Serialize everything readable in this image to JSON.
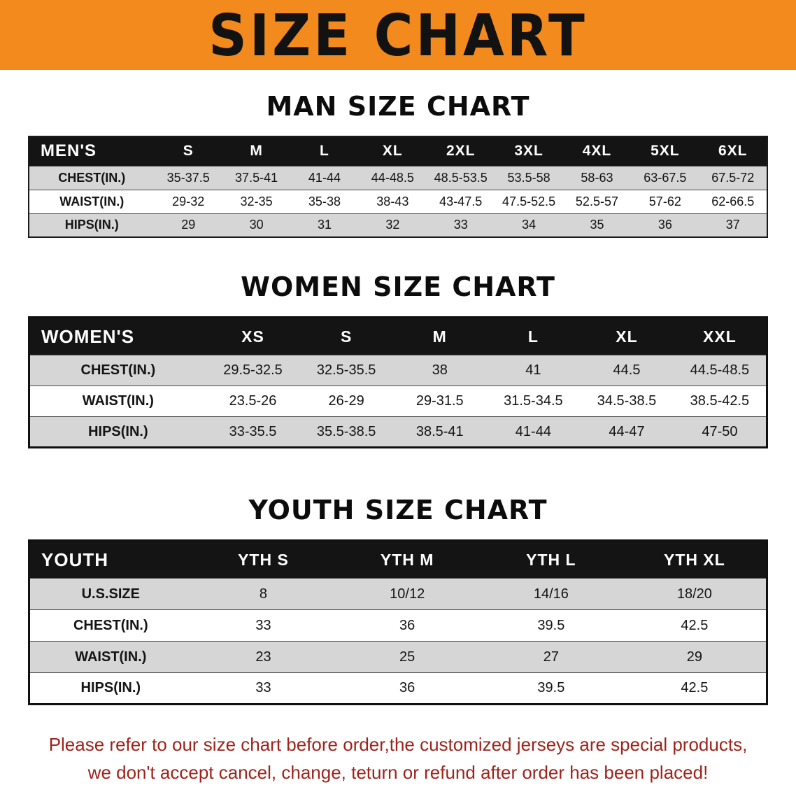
{
  "banner": {
    "title": "SIZE CHART"
  },
  "colors": {
    "banner_orange": "#f28a1e",
    "header_black": "#141414",
    "stripe_gray": "#d6d6d6",
    "disclaimer_red": "#9d231b"
  },
  "sections": [
    {
      "heading": "MAN SIZE CHART",
      "table": {
        "header": [
          "MEN'S",
          "S",
          "M",
          "L",
          "XL",
          "2XL",
          "3XL",
          "4XL",
          "5XL",
          "6XL"
        ],
        "rows": [
          [
            "CHEST(IN.)",
            "35-37.5",
            "37.5-41",
            "41-44",
            "44-48.5",
            "48.5-53.5",
            "53.5-58",
            "58-63",
            "63-67.5",
            "67.5-72"
          ],
          [
            "WAIST(IN.)",
            "29-32",
            "32-35",
            "35-38",
            "38-43",
            "43-47.5",
            "47.5-52.5",
            "52.5-57",
            "57-62",
            "62-66.5"
          ],
          [
            "HIPS(IN.)",
            "29",
            "30",
            "31",
            "32",
            "33",
            "34",
            "35",
            "36",
            "37"
          ]
        ]
      }
    },
    {
      "heading": "WOMEN SIZE CHART",
      "table": {
        "header": [
          "WOMEN'S",
          "XS",
          "S",
          "M",
          "L",
          "XL",
          "XXL"
        ],
        "rows": [
          [
            "CHEST(IN.)",
            "29.5-32.5",
            "32.5-35.5",
            "38",
            "41",
            "44.5",
            "44.5-48.5"
          ],
          [
            "WAIST(IN.)",
            "23.5-26",
            "26-29",
            "29-31.5",
            "31.5-34.5",
            "34.5-38.5",
            "38.5-42.5"
          ],
          [
            "HIPS(IN.)",
            "33-35.5",
            "35.5-38.5",
            "38.5-41",
            "41-44",
            "44-47",
            "47-50"
          ]
        ]
      }
    },
    {
      "heading": "YOUTH SIZE CHART",
      "table": {
        "header": [
          "YOUTH",
          "YTH S",
          "YTH M",
          "YTH L",
          "YTH XL"
        ],
        "rows": [
          [
            "U.S.SIZE",
            "8",
            "10/12",
            "14/16",
            "18/20"
          ],
          [
            "CHEST(IN.)",
            "33",
            "36",
            "39.5",
            "42.5"
          ],
          [
            "WAIST(IN.)",
            "23",
            "25",
            "27",
            "29"
          ],
          [
            "HIPS(IN.)",
            "33",
            "36",
            "39.5",
            "42.5"
          ]
        ]
      }
    }
  ],
  "disclaimer": {
    "line1": "Please refer to our size chart before order,the customized jerseys are special products,",
    "line2": "we don't accept cancel, change, teturn or refund after order has been placed!"
  }
}
